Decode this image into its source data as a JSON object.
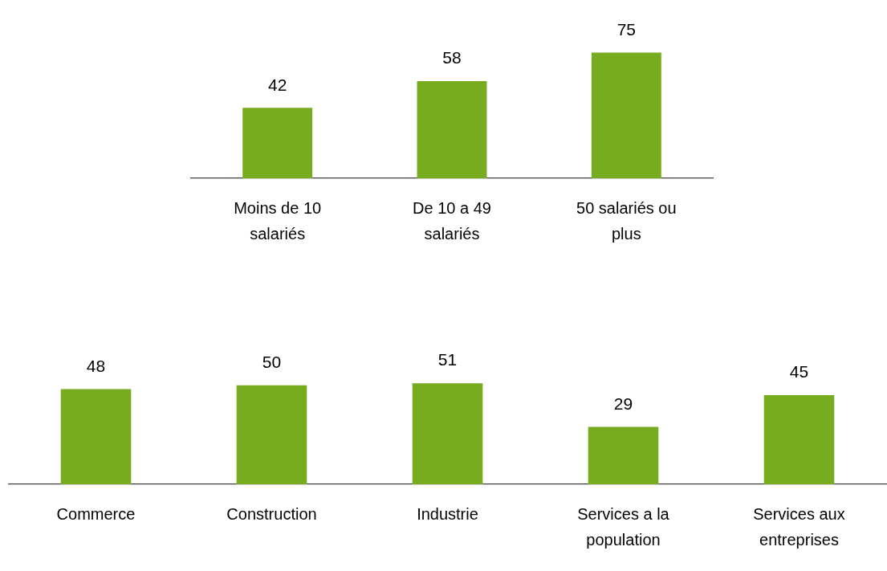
{
  "chart_data": [
    {
      "type": "bar",
      "categories": [
        "Moins de 10 salariés",
        "De 10 a 49 salariés",
        "50 salariés ou plus"
      ],
      "values": [
        42,
        58,
        75
      ],
      "color": "#77ac1f",
      "data_labels": true,
      "grid": false,
      "legend": false
    },
    {
      "type": "bar",
      "categories": [
        "Commerce",
        "Construction",
        "Industrie",
        "Services a la population",
        "Services aux entreprises"
      ],
      "values": [
        48,
        50,
        51,
        29,
        45
      ],
      "color": "#77ac1f",
      "data_labels": true,
      "grid": false,
      "legend": false
    }
  ]
}
